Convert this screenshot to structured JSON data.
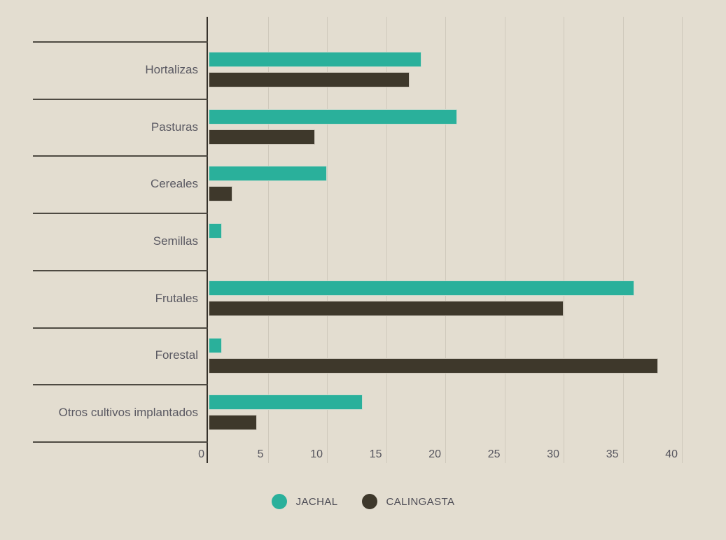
{
  "chart_data": {
    "type": "bar",
    "orientation": "horizontal",
    "title": "",
    "xlabel": "",
    "ylabel": "",
    "categories": [
      "Hortalizas",
      "Pasturas",
      "Cereales",
      "Semillas",
      "Frutales",
      "Forestal",
      "Otros cultivos implantados"
    ],
    "series": [
      {
        "name": "JACHAL",
        "color": "#2ab09b",
        "values": [
          18,
          21,
          10,
          1.1,
          36,
          1.1,
          13
        ]
      },
      {
        "name": "CALINGASTA",
        "color": "#3e382b",
        "values": [
          17,
          9,
          2,
          0,
          30,
          38,
          4.1
        ]
      }
    ],
    "xticks": [
      0,
      5,
      10,
      15,
      20,
      25,
      30,
      35,
      40
    ],
    "xlim": [
      0,
      43.5
    ],
    "grid": "vertical",
    "legend_position": "bottom-center"
  },
  "colors": {
    "background": "#e3ddd0",
    "gridline": "#cfc9bc",
    "axis_line": "#36322b",
    "separator": "#4e4a42",
    "category_text": "#5a5962",
    "tick_text": "#56555e",
    "legend_text": "#4d4c55"
  }
}
